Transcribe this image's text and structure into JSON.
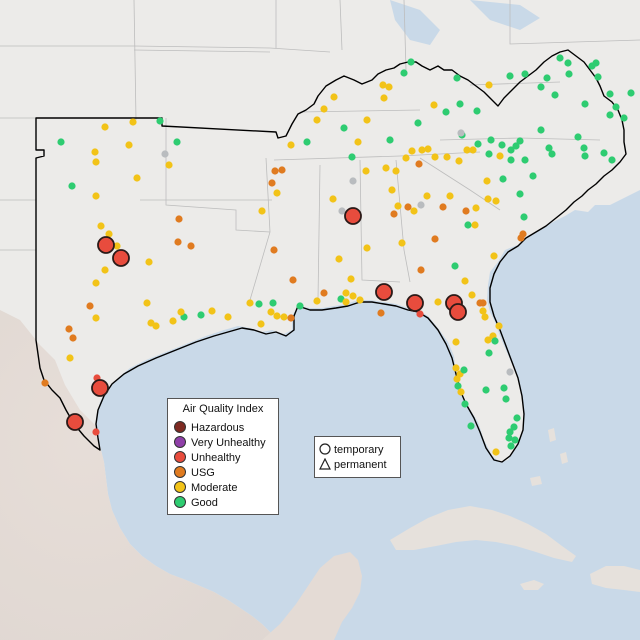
{
  "legend": {
    "title": "Air Quality Index",
    "categories": [
      {
        "label": "Hazardous",
        "color": "#7e2a22"
      },
      {
        "label": "Very Unhealthy",
        "color": "#8f3fa8"
      },
      {
        "label": "Unhealthy",
        "color": "#e84c3d"
      },
      {
        "label": "USG",
        "color": "#e07b20"
      },
      {
        "label": "Moderate",
        "color": "#f2c318"
      },
      {
        "label": "Good",
        "color": "#2ecc71"
      }
    ],
    "no_data_color": "#b9bcbf"
  },
  "shape_legend": {
    "temporary": "temporary",
    "permanent": "permanent"
  },
  "colors": {
    "ocean": "#c9d9e8",
    "land": "#ecebe9",
    "land_outside": "#e2e1de",
    "border": "#000000"
  }
}
